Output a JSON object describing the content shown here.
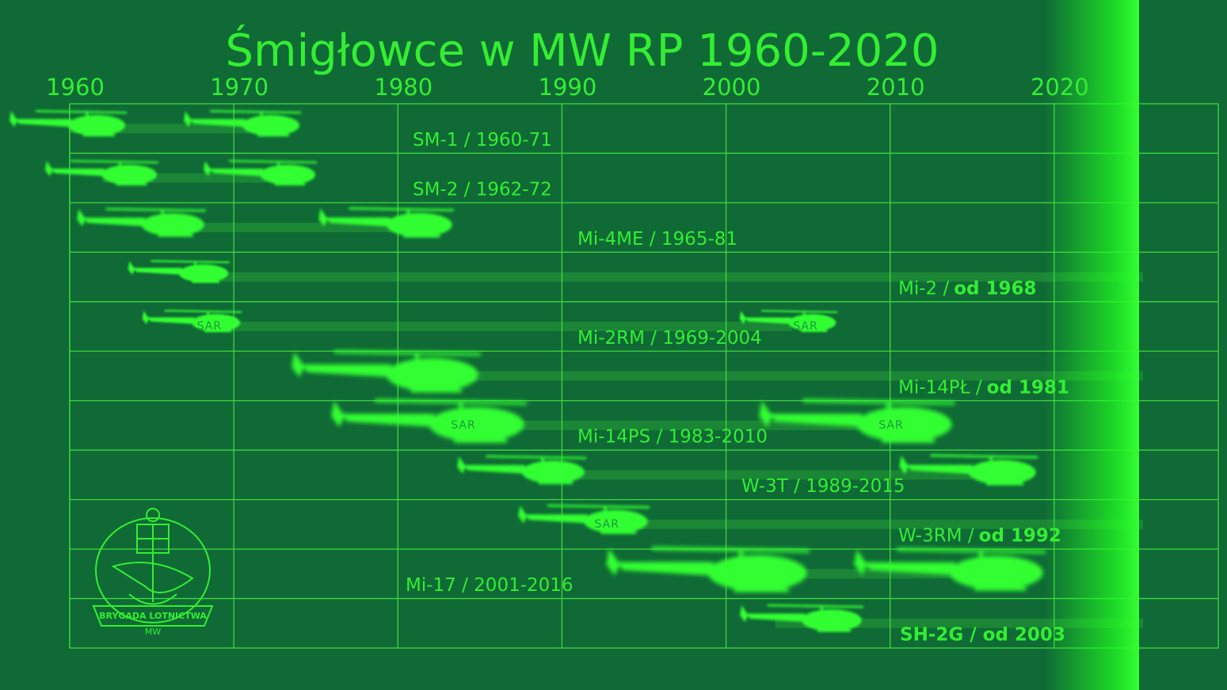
{
  "chart_data": {
    "type": "timeline",
    "title": "Śmigłowce w MW RP  1960-2020",
    "xlim": [
      1960,
      2030
    ],
    "xticks": [
      1960,
      1970,
      1980,
      1990,
      2000,
      2010,
      2020
    ],
    "color": "#33ff33",
    "rows": [
      {
        "label": "SM-1 / 1960-71",
        "start": 1960,
        "end": 1971
      },
      {
        "label": "SM-2 / 1962-72",
        "start": 1962,
        "end": 1972
      },
      {
        "label": "Mi-4ME / 1965-81",
        "start": 1965,
        "end": 1981
      },
      {
        "label": "Mi-2 /",
        "label_bold": "od 1968",
        "start": 1968
      },
      {
        "label": "Mi-2RM / 1969-2004",
        "start": 1969,
        "end": 2004,
        "icon_text": "SAR"
      },
      {
        "label": "Mi-14PŁ /",
        "label_bold": "od 1981",
        "start": 1981
      },
      {
        "label": "Mi-14PS / 1983-2010",
        "start": 1983,
        "end": 2010,
        "icon_text": "SAR"
      },
      {
        "label": "W-3T / 1989-2015",
        "start": 1989,
        "end": 2015
      },
      {
        "label": "W-3RM /",
        "label_bold": "od 1992",
        "start": 1992,
        "icon_text": "SAR"
      },
      {
        "label": "Mi-17 / 2001-2016",
        "start": 2001,
        "end": 2016
      },
      {
        "label_bold": "SH-2G / od 2003",
        "start": 2003
      }
    ],
    "logo": {
      "text": "BRYGADA LOTNICTWA",
      "subtext": "MW"
    }
  }
}
